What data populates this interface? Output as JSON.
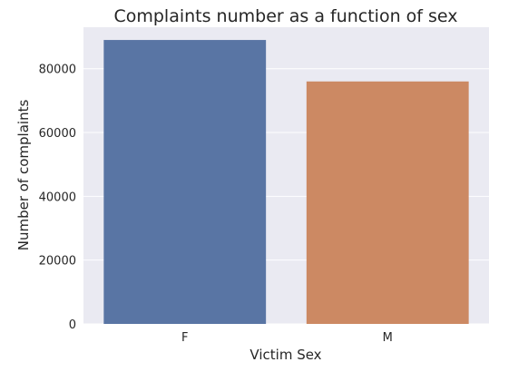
{
  "chart_data": {
    "type": "bar",
    "title": "Complaints number as a function of sex",
    "xlabel": "Victim Sex",
    "ylabel": "Number of complaints",
    "categories": [
      "F",
      "M"
    ],
    "values": [
      89000,
      76000
    ],
    "ylim": [
      0,
      93000
    ],
    "yticks": [
      0,
      20000,
      40000,
      60000,
      80000
    ],
    "ytick_labels": [
      "0",
      "20000",
      "40000",
      "60000",
      "80000"
    ],
    "grid": true,
    "colors": {
      "plot_background": "#EAEAF2",
      "grid": "#FFFFFF",
      "bars": [
        "#5975A4",
        "#CC8963"
      ]
    }
  }
}
